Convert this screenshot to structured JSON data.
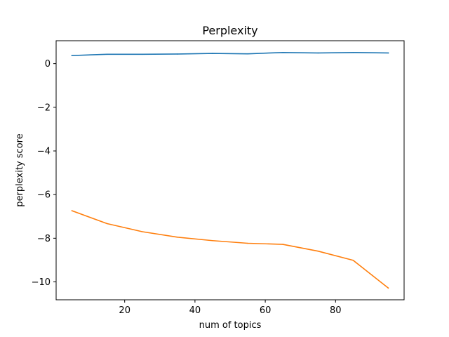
{
  "chart_data": {
    "type": "line",
    "title": "Perplexity",
    "xlabel": "num of topics",
    "ylabel": "perplexity score",
    "x": [
      5,
      15,
      25,
      35,
      45,
      55,
      65,
      75,
      85,
      95
    ],
    "series": [
      {
        "color": "#1f77b4",
        "values": [
          0.37,
          0.43,
          0.43,
          0.44,
          0.47,
          0.45,
          0.51,
          0.49,
          0.51,
          0.49
        ]
      },
      {
        "color": "#ff7f0e",
        "values": [
          -6.74,
          -7.33,
          -7.7,
          -7.95,
          -8.11,
          -8.23,
          -8.28,
          -8.59,
          -9.01,
          -10.28
        ]
      }
    ],
    "xlim": [
      0.5,
      99.5
    ],
    "ylim": [
      -10.82,
      1.05
    ],
    "xticks": [
      20,
      40,
      60,
      80
    ],
    "yticks": [
      0,
      -2,
      -4,
      -6,
      -8,
      -10
    ],
    "grid": false,
    "legend": "none"
  }
}
